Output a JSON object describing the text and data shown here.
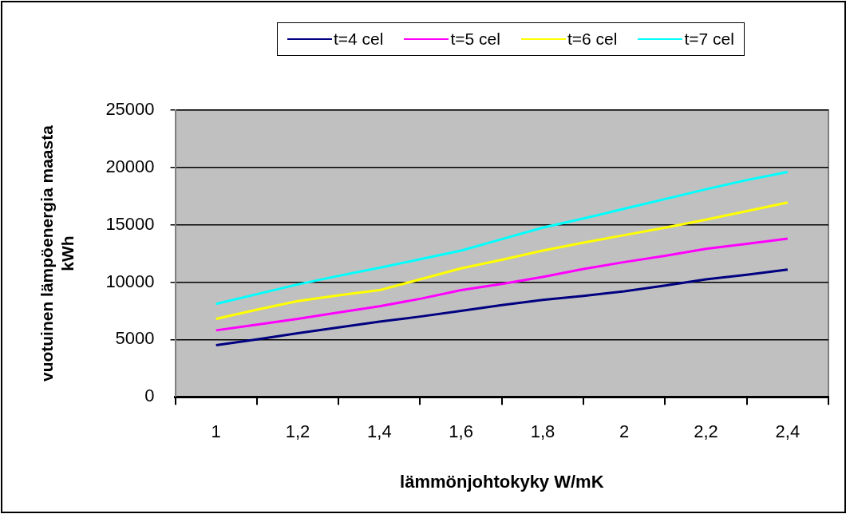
{
  "chart_data": {
    "type": "line",
    "xlabel": "lämmönjohtokyky W/mK",
    "ylabel": "vuotuinen lämpöenergia maasta kWh",
    "x": [
      1,
      1.1,
      1.2,
      1.3,
      1.4,
      1.5,
      1.6,
      1.7,
      1.8,
      1.9,
      2,
      2.1,
      2.2,
      2.3,
      2.4
    ],
    "series": [
      {
        "name": "t=4 cel",
        "color": "#000080",
        "values": [
          4500,
          5000,
          5550,
          6050,
          6550,
          7000,
          7500,
          8000,
          8450,
          8800,
          9200,
          9700,
          10250,
          10650,
          11100
        ]
      },
      {
        "name": "t=5 cel",
        "color": "#ff00ff",
        "values": [
          5800,
          6300,
          6800,
          7350,
          7900,
          8550,
          9300,
          9850,
          10450,
          11150,
          11750,
          12300,
          12900,
          13350,
          13800
        ]
      },
      {
        "name": "t=6 cel",
        "color": "#ffff00",
        "values": [
          6800,
          7600,
          8350,
          8850,
          9300,
          10250,
          11200,
          11950,
          12750,
          13450,
          14100,
          14750,
          15450,
          16200,
          16950
        ]
      },
      {
        "name": "t=7 cel",
        "color": "#00ffff",
        "values": [
          8100,
          8950,
          9800,
          10550,
          11250,
          12000,
          12750,
          13750,
          14750,
          15550,
          16400,
          17250,
          18100,
          18900,
          19600
        ]
      }
    ],
    "xlim": [
      0.9,
      2.5
    ],
    "xticks": [
      {
        "value": 0.9,
        "label": null
      },
      {
        "value": 1,
        "label": "1"
      },
      {
        "value": 1.1,
        "label": null
      },
      {
        "value": 1.2,
        "label": "1,2"
      },
      {
        "value": 1.3,
        "label": null
      },
      {
        "value": 1.4,
        "label": "1,4"
      },
      {
        "value": 1.5,
        "label": null
      },
      {
        "value": 1.6,
        "label": "1,6"
      },
      {
        "value": 1.7,
        "label": null
      },
      {
        "value": 1.8,
        "label": "1,8"
      },
      {
        "value": 1.9,
        "label": null
      },
      {
        "value": 2,
        "label": "2"
      },
      {
        "value": 2.1,
        "label": null
      },
      {
        "value": 2.2,
        "label": "2,2"
      },
      {
        "value": 2.3,
        "label": null
      },
      {
        "value": 2.4,
        "label": "2,4"
      },
      {
        "value": 2.5,
        "label": null
      }
    ],
    "ylim": [
      0,
      25000
    ],
    "yticks": [
      0,
      5000,
      10000,
      15000,
      20000,
      25000
    ],
    "grid": "y",
    "legend": "top",
    "marker": "none",
    "line_style": "solid"
  }
}
